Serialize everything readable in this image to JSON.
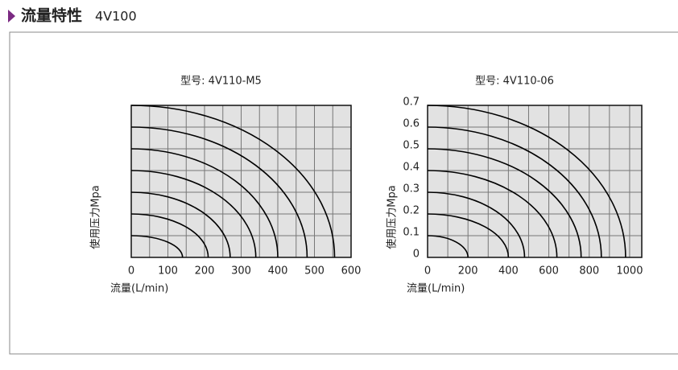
{
  "header": {
    "title": "流量特性",
    "model": "4V100"
  },
  "chart_data": [
    {
      "type": "line",
      "title": "型号:  4V110-M5",
      "x_label": "流量(L/min)",
      "y_label": "使用压力Mpa",
      "xlim": [
        0,
        600
      ],
      "ylim": [
        0,
        0.7
      ],
      "xticks": [
        0,
        100,
        200,
        300,
        400,
        500,
        600
      ],
      "xgrid": [
        50,
        100,
        150,
        200,
        250,
        300,
        350,
        400,
        450,
        500,
        550
      ],
      "ygrid": [
        0.1,
        0.2,
        0.3,
        0.4,
        0.5,
        0.6
      ],
      "color": "#000000",
      "series": [
        {
          "x": [
            0,
            140
          ],
          "values": [
            0.1,
            0
          ]
        },
        {
          "x": [
            0,
            210
          ],
          "values": [
            0.2,
            0
          ]
        },
        {
          "x": [
            0,
            270
          ],
          "values": [
            0.3,
            0
          ]
        },
        {
          "x": [
            0,
            340
          ],
          "values": [
            0.4,
            0
          ]
        },
        {
          "x": [
            0,
            400
          ],
          "values": [
            0.5,
            0
          ]
        },
        {
          "x": [
            0,
            480
          ],
          "values": [
            0.6,
            0
          ]
        },
        {
          "x": [
            0,
            555
          ],
          "values": [
            0.7,
            0
          ]
        }
      ]
    },
    {
      "type": "line",
      "title": "型号:  4V110-06",
      "x_label": "流量(L/min)",
      "y_label": "使用压力Mpa",
      "xlim": [
        0,
        1060
      ],
      "ylim": [
        0,
        0.7
      ],
      "xticks": [
        0,
        200,
        400,
        600,
        800,
        1000
      ],
      "yticks": [
        0,
        0.1,
        0.2,
        0.3,
        0.4,
        0.5,
        0.6,
        0.7
      ],
      "xgrid": [
        100,
        200,
        300,
        400,
        500,
        600,
        700,
        800,
        900,
        1000
      ],
      "color": "#000000",
      "series": [
        {
          "x": [
            0,
            200
          ],
          "values": [
            0.1,
            0
          ]
        },
        {
          "x": [
            0,
            400
          ],
          "values": [
            0.2,
            0
          ]
        },
        {
          "x": [
            0,
            480
          ],
          "values": [
            0.3,
            0
          ]
        },
        {
          "x": [
            0,
            640
          ],
          "values": [
            0.4,
            0
          ]
        },
        {
          "x": [
            0,
            760
          ],
          "values": [
            0.5,
            0
          ]
        },
        {
          "x": [
            0,
            860
          ],
          "values": [
            0.6,
            0
          ]
        },
        {
          "x": [
            0,
            980
          ],
          "values": [
            0.7,
            0
          ]
        }
      ]
    }
  ]
}
